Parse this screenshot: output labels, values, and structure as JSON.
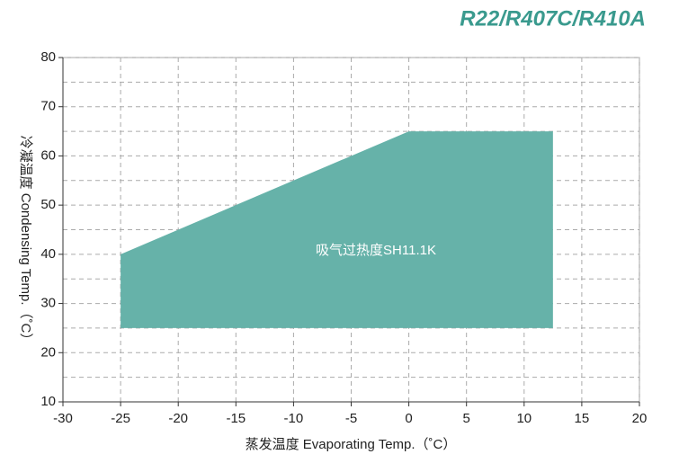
{
  "chart_data": {
    "type": "area",
    "title": "R22/R407C/R410A",
    "xlabel": "蒸发温度  Evaporating Temp.（˚C）",
    "ylabel": "冷凝温度 Condensing Temp.（˚C）",
    "annotation": "吸气过热度SH11.1K",
    "series": [
      {
        "color": "#66b2a9",
        "x": [
          -25,
          0,
          12.5,
          12.5,
          -25
        ],
        "values": [
          40,
          65,
          65,
          25,
          25
        ]
      }
    ],
    "xlim": [
      -30,
      20
    ],
    "xticks": [
      -30,
      -25,
      -20,
      -15,
      -10,
      -5,
      0,
      5,
      10,
      15,
      20
    ],
    "ylim": [
      10,
      80
    ],
    "yticks": [
      10,
      20,
      30,
      40,
      50,
      60,
      70,
      80
    ],
    "yminor": [
      15,
      25,
      35,
      45,
      55,
      65,
      75
    ],
    "grid": true
  }
}
